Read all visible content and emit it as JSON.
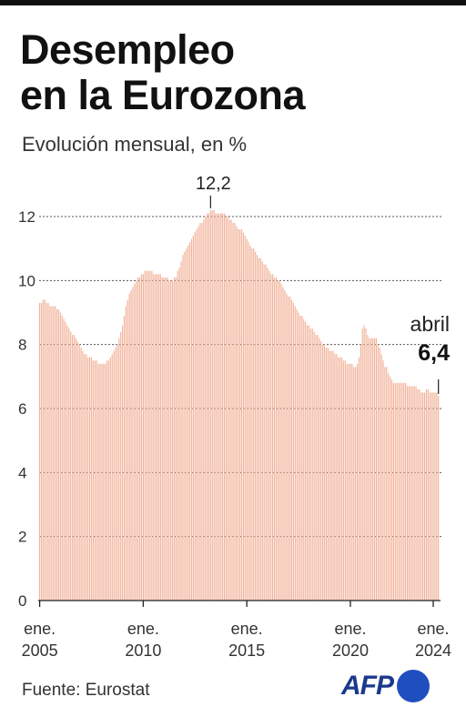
{
  "header": {
    "title_line1": "Desempleo",
    "title_line2": "en la Eurozona",
    "subtitle": "Evolución mensual, en %"
  },
  "footer": {
    "source": "Fuente: Eurostat",
    "logo": "AFP"
  },
  "colors": {
    "bar": "#f2b49c",
    "bar_line": "#ed9e82",
    "grid": "#555555",
    "axis": "#222222",
    "logo_text": "#1b3a8c",
    "logo_dot": "#1f4fbf"
  },
  "chart_data": {
    "type": "bar",
    "title": "Desempleo en la Eurozona",
    "subtitle": "Evolución mensual, en %",
    "x_range": [
      "2005-01",
      "2024-04"
    ],
    "ylim": [
      0,
      12
    ],
    "yticks": [
      "0",
      "2",
      "4",
      "6",
      "8",
      "10",
      "12"
    ],
    "xticks": [
      {
        "line1": "ene.",
        "line2": "2005"
      },
      {
        "line1": "ene.",
        "line2": "2010"
      },
      {
        "line1": "ene.",
        "line2": "2015"
      },
      {
        "line1": "ene.",
        "line2": "2020"
      },
      {
        "line1": "ene.",
        "line2": "2024"
      }
    ],
    "grid": "horizontal dashed",
    "series": [
      {
        "values": [
          9.3,
          9.3,
          9.4,
          9.4,
          9.3,
          9.3,
          9.2,
          9.2,
          9.2,
          9.2,
          9.1,
          9.1,
          9.0,
          8.9,
          8.8,
          8.7,
          8.6,
          8.5,
          8.4,
          8.3,
          8.3,
          8.2,
          8.1,
          8.0,
          7.9,
          7.8,
          7.7,
          7.7,
          7.6,
          7.6,
          7.6,
          7.5,
          7.5,
          7.5,
          7.4,
          7.4,
          7.4,
          7.4,
          7.4,
          7.5,
          7.5,
          7.6,
          7.7,
          7.8,
          7.9,
          8.0,
          8.2,
          8.4,
          8.6,
          8.9,
          9.2,
          9.4,
          9.6,
          9.7,
          9.8,
          9.9,
          10.0,
          10.1,
          10.1,
          10.2,
          10.2,
          10.3,
          10.3,
          10.3,
          10.3,
          10.3,
          10.2,
          10.2,
          10.2,
          10.2,
          10.2,
          10.1,
          10.1,
          10.1,
          10.1,
          10.0,
          10.0,
          10.0,
          10.1,
          10.1,
          10.3,
          10.4,
          10.6,
          10.8,
          10.9,
          11.0,
          11.1,
          11.2,
          11.3,
          11.4,
          11.5,
          11.6,
          11.7,
          11.8,
          11.8,
          11.9,
          12.0,
          12.1,
          12.1,
          12.2,
          12.2,
          12.2,
          12.1,
          12.1,
          12.1,
          12.1,
          12.1,
          12.1,
          12.0,
          12.0,
          11.9,
          11.9,
          11.8,
          11.8,
          11.7,
          11.6,
          11.6,
          11.6,
          11.5,
          11.4,
          11.3,
          11.2,
          11.1,
          11.0,
          11.0,
          10.9,
          10.8,
          10.7,
          10.7,
          10.6,
          10.5,
          10.5,
          10.4,
          10.3,
          10.2,
          10.2,
          10.1,
          10.1,
          10.0,
          10.0,
          9.9,
          9.8,
          9.7,
          9.6,
          9.5,
          9.5,
          9.4,
          9.3,
          9.2,
          9.1,
          9.0,
          8.9,
          8.9,
          8.8,
          8.7,
          8.6,
          8.6,
          8.5,
          8.5,
          8.4,
          8.3,
          8.3,
          8.2,
          8.1,
          8.0,
          8.0,
          7.9,
          7.9,
          7.8,
          7.8,
          7.8,
          7.7,
          7.7,
          7.6,
          7.6,
          7.6,
          7.5,
          7.5,
          7.4,
          7.4,
          7.4,
          7.4,
          7.3,
          7.3,
          7.4,
          7.6,
          8.0,
          8.5,
          8.6,
          8.5,
          8.3,
          8.2,
          8.2,
          8.2,
          8.2,
          8.2,
          8.0,
          7.9,
          7.7,
          7.5,
          7.3,
          7.3,
          7.1,
          7.0,
          6.9,
          6.8,
          6.8,
          6.8,
          6.8,
          6.8,
          6.8,
          6.8,
          6.8,
          6.7,
          6.7,
          6.7,
          6.7,
          6.7,
          6.7,
          6.6,
          6.6,
          6.5,
          6.5,
          6.5,
          6.6,
          6.6,
          6.5,
          6.5,
          6.5,
          6.5,
          6.5,
          6.4
        ]
      }
    ],
    "annotations": [
      {
        "label": "12,2",
        "index": 99
      },
      {
        "label": "abril",
        "value": "6,4",
        "index": 231
      }
    ]
  }
}
